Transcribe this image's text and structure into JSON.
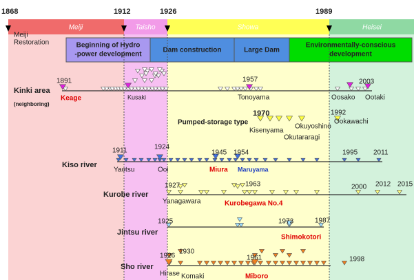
{
  "header": {
    "years": [
      "1868",
      "1912",
      "1926",
      "1989"
    ],
    "eras": [
      "Meiji",
      "Taisho",
      "Showa",
      "Heisei"
    ],
    "restoration": [
      "Meiji",
      "Restoration"
    ]
  },
  "phases": [
    [
      "Beginning of Hydro",
      "-power development"
    ],
    [
      "Dam construction"
    ],
    [
      "Large Dam"
    ],
    [
      "Environmentally-conscious",
      "development"
    ]
  ],
  "rows": {
    "kinki": {
      "name": "Kinki area",
      "note": "(neighboring)",
      "years": [
        "1891",
        "1957",
        "2003"
      ],
      "places": [
        "Keage",
        "Kusaki",
        "Tonoyama",
        "Oosako",
        "Ootaki"
      ]
    },
    "pumped": {
      "name": "Pumped-storage type",
      "years": [
        "1970",
        "1992"
      ],
      "places": [
        "Kisenyama",
        "Okuyoshino",
        "Ookawachi",
        "Okutararagi"
      ]
    },
    "kiso": {
      "name": "Kiso river",
      "years": [
        "1911",
        "1924",
        "1945",
        "1954",
        "1995",
        "2011"
      ],
      "places": [
        "Yaotsu",
        "Ooi",
        "Miura",
        "Maruyama"
      ]
    },
    "kurobe": {
      "name": "Kurobe river",
      "years": [
        "1927",
        "1963",
        "2000",
        "2012",
        "2015"
      ],
      "places": [
        "Yanagawara",
        "Kurobegawa No.4"
      ]
    },
    "jintsu": {
      "name": "Jintsu river",
      "years": [
        "1925",
        "1973",
        "1987"
      ],
      "places": [
        "Shimokotori"
      ]
    },
    "sho": {
      "name": "Sho river",
      "years": [
        "1926",
        "1930",
        "1961",
        "1998"
      ],
      "places": [
        "Hirase",
        "Komaki",
        "Miboro"
      ]
    }
  }
}
